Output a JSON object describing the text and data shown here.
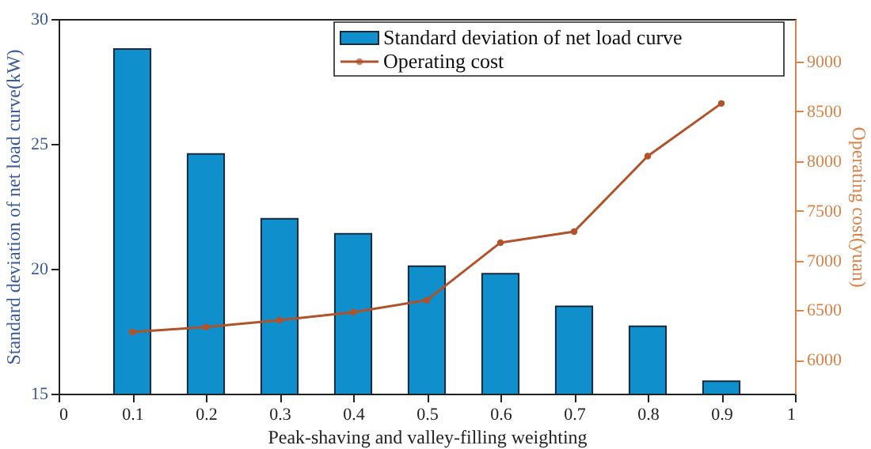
{
  "chart_data": {
    "type": "bar",
    "xlabel": "Peak-shaving and valley-filling weighting",
    "ylabel": "Standard deviation of net load curve(kW)",
    "y2label": "Operating cost(yuan)",
    "x": [
      0.1,
      0.2,
      0.3,
      0.4,
      0.5,
      0.6,
      0.7,
      0.8,
      0.9
    ],
    "xlim": [
      0,
      1
    ],
    "xticks": [
      0,
      0.1,
      0.2,
      0.3,
      0.4,
      0.5,
      0.6,
      0.7,
      0.8,
      0.9,
      1
    ],
    "ylim": [
      15,
      30
    ],
    "yticks": [
      15,
      20,
      25,
      30
    ],
    "y2lim": [
      5660,
      9430
    ],
    "y2ticks": [
      6000,
      6500,
      7000,
      7500,
      8000,
      8500,
      9000
    ],
    "series": [
      {
        "name": "Standard deviation of net load curve",
        "color": "#0f8fcc",
        "values": [
          28.8,
          24.6,
          22.0,
          21.4,
          20.1,
          19.8,
          18.5,
          17.7,
          15.5
        ]
      },
      {
        "name": "Operating cost",
        "type": "line",
        "axis": "y2",
        "color": "#b0522a",
        "marker": "circle",
        "values": [
          6280,
          6330,
          6400,
          6480,
          6600,
          7180,
          7290,
          8050,
          8580
        ]
      }
    ],
    "legend": "top right",
    "grid": false
  }
}
